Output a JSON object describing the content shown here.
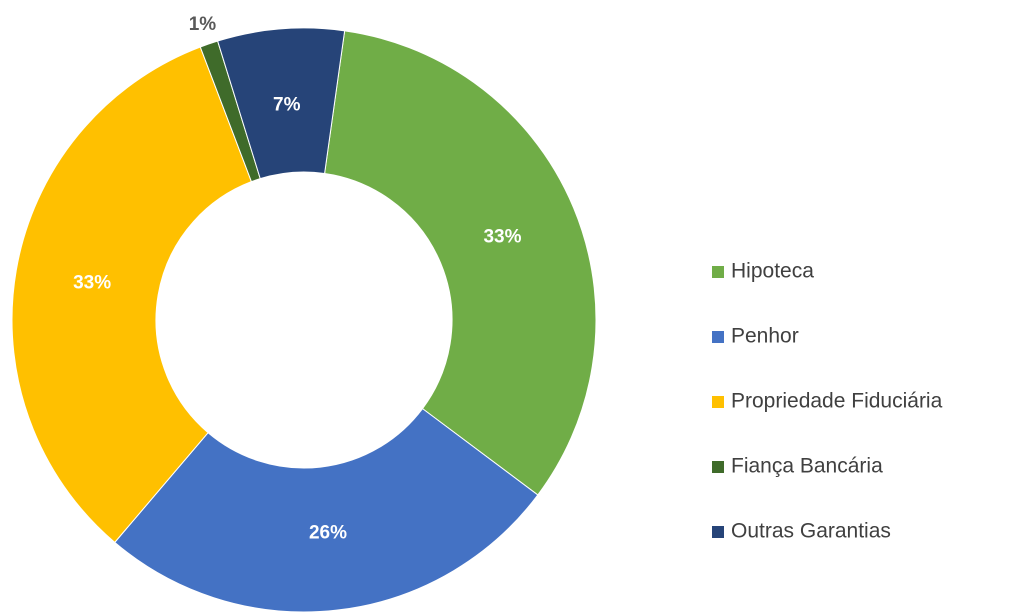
{
  "chart_data": {
    "type": "donut",
    "categories": [
      "Hipoteca",
      "Penhor",
      "Propriedade Fiduciária",
      "Fiança Bancária",
      "Outras Garantias"
    ],
    "values": [
      33,
      26,
      33,
      1,
      7
    ],
    "value_labels": [
      "33%",
      "26%",
      "33%",
      "1%",
      "7%"
    ],
    "colors": [
      "#70ad47",
      "#4472c4",
      "#ffc000",
      "#3f6b2a",
      "#264478"
    ],
    "legend": "right"
  }
}
